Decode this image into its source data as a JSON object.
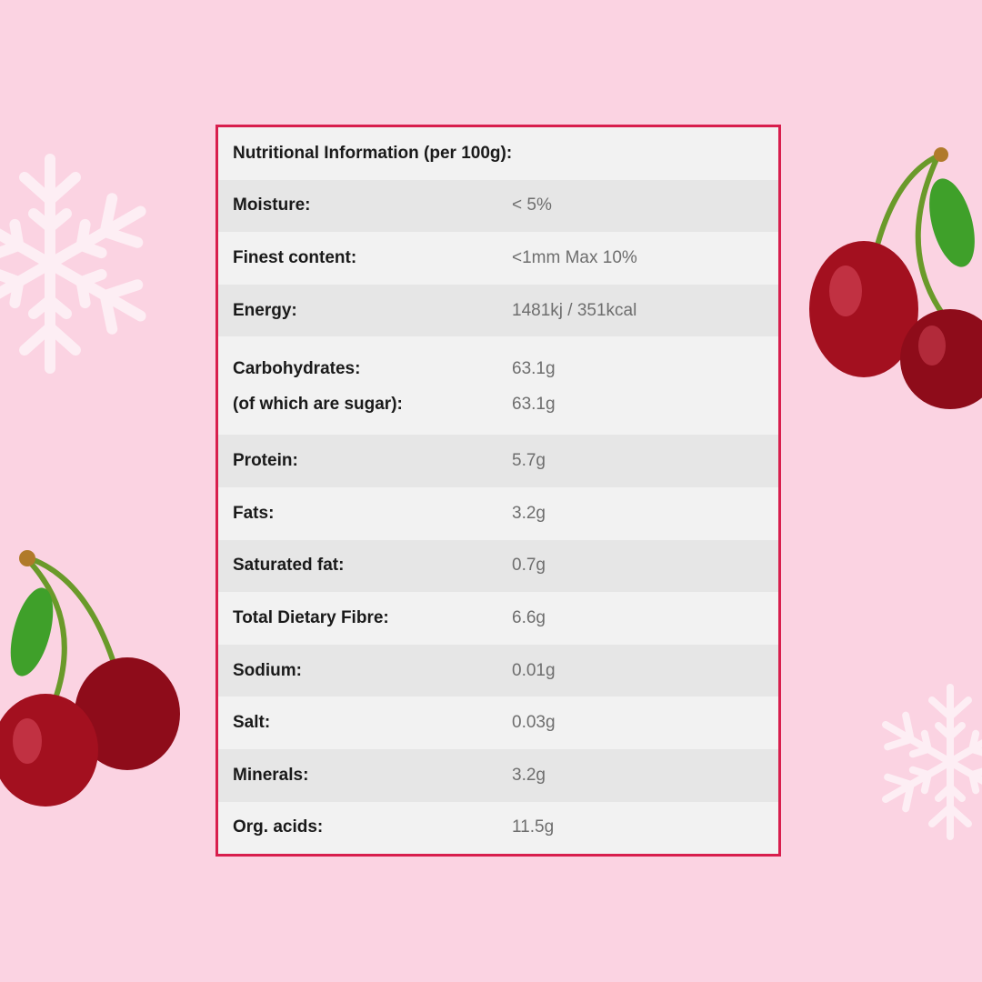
{
  "table": {
    "title": "Nutritional Information (per 100g):",
    "rows": [
      {
        "label": "Moisture:",
        "value": "< 5%"
      },
      {
        "label": "Finest content:",
        "value": "<1mm Max 10%"
      },
      {
        "label": "Energy:",
        "value": "1481kj / 351kcal"
      },
      {
        "label": "Carbohydrates:",
        "value": "63.1g",
        "sub_label": "(of which are sugar):",
        "sub_value": "63.1g"
      },
      {
        "label": "Protein:",
        "value": "5.7g"
      },
      {
        "label": "Fats:",
        "value": "3.2g"
      },
      {
        "label": "Saturated fat:",
        "value": "0.7g"
      },
      {
        "label": "Total Dietary Fibre:",
        "value": "6.6g"
      },
      {
        "label": "Sodium:",
        "value": "0.01g"
      },
      {
        "label": "Salt:",
        "value": "0.03g"
      },
      {
        "label": "Minerals:",
        "value": "3.2g"
      },
      {
        "label": "Org. acids:",
        "value": "11.5g"
      }
    ]
  },
  "colors": {
    "background": "#fbd3e2",
    "border": "#d81e4d",
    "cherry": "#a3101f"
  },
  "decorations": [
    "snowflake-icon",
    "cherry-icon"
  ]
}
